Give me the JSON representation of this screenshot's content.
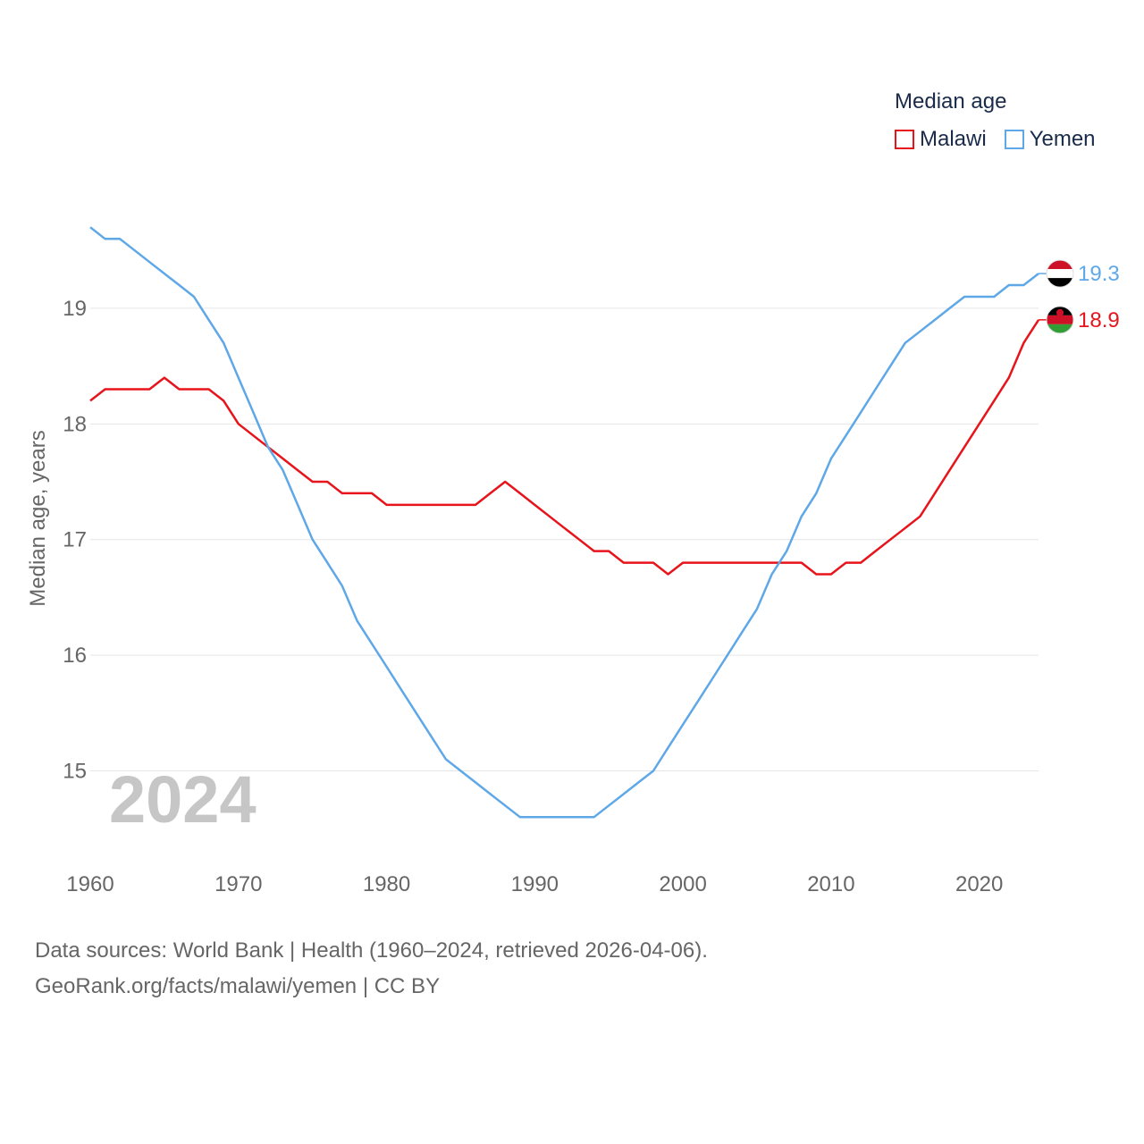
{
  "chart_data": {
    "type": "line",
    "legend_title": "Median age",
    "ylabel": "Median age, years",
    "xlim": [
      1960,
      2024
    ],
    "ylim": [
      14.2,
      19.95
    ],
    "yticks": [
      15,
      16,
      17,
      18,
      19
    ],
    "xticks": [
      1960,
      1970,
      1980,
      1990,
      2000,
      2010,
      2020
    ],
    "x": [
      1960,
      1961,
      1962,
      1963,
      1964,
      1965,
      1966,
      1967,
      1968,
      1969,
      1970,
      1971,
      1972,
      1973,
      1974,
      1975,
      1976,
      1977,
      1978,
      1979,
      1980,
      1981,
      1982,
      1983,
      1984,
      1985,
      1986,
      1987,
      1988,
      1989,
      1990,
      1991,
      1992,
      1993,
      1994,
      1995,
      1996,
      1997,
      1998,
      1999,
      2000,
      2001,
      2002,
      2003,
      2004,
      2005,
      2006,
      2007,
      2008,
      2009,
      2010,
      2011,
      2012,
      2013,
      2014,
      2015,
      2016,
      2017,
      2018,
      2019,
      2020,
      2021,
      2022,
      2023,
      2024
    ],
    "series": [
      {
        "name": "Malawi",
        "color": "#e8141b",
        "end_label": "18.9",
        "values": [
          18.2,
          18.3,
          18.3,
          18.3,
          18.3,
          18.4,
          18.3,
          18.3,
          18.3,
          18.2,
          18.0,
          17.9,
          17.8,
          17.7,
          17.6,
          17.5,
          17.5,
          17.4,
          17.4,
          17.4,
          17.3,
          17.3,
          17.3,
          17.3,
          17.3,
          17.3,
          17.3,
          17.4,
          17.5,
          17.4,
          17.3,
          17.2,
          17.1,
          17.0,
          16.9,
          16.9,
          16.8,
          16.8,
          16.8,
          16.7,
          16.8,
          16.8,
          16.8,
          16.8,
          16.8,
          16.8,
          16.8,
          16.8,
          16.8,
          16.7,
          16.7,
          16.8,
          16.8,
          16.9,
          17.0,
          17.1,
          17.2,
          17.4,
          17.6,
          17.8,
          18.0,
          18.2,
          18.4,
          18.7,
          18.9
        ]
      },
      {
        "name": "Yemen",
        "color": "#5fa8e8",
        "end_label": "19.3",
        "values": [
          19.7,
          19.6,
          19.6,
          19.5,
          19.4,
          19.3,
          19.2,
          19.1,
          18.9,
          18.7,
          18.4,
          18.1,
          17.8,
          17.6,
          17.3,
          17.0,
          16.8,
          16.6,
          16.3,
          16.1,
          15.9,
          15.7,
          15.5,
          15.3,
          15.1,
          15.0,
          14.9,
          14.8,
          14.7,
          14.6,
          14.6,
          14.6,
          14.6,
          14.6,
          14.6,
          14.7,
          14.8,
          14.9,
          15.0,
          15.2,
          15.4,
          15.6,
          15.8,
          16.0,
          16.2,
          16.4,
          16.7,
          16.9,
          17.2,
          17.4,
          17.7,
          17.9,
          18.1,
          18.3,
          18.5,
          18.7,
          18.8,
          18.9,
          19.0,
          19.1,
          19.1,
          19.1,
          19.2,
          19.2,
          19.3
        ]
      }
    ],
    "current_year_label": "2024"
  },
  "sources": {
    "line1": "Data sources: World Bank | Health (1960–2024, retrieved 2026-04-06).",
    "line2": "GeoRank.org/facts/malawi/yemen | CC BY"
  }
}
